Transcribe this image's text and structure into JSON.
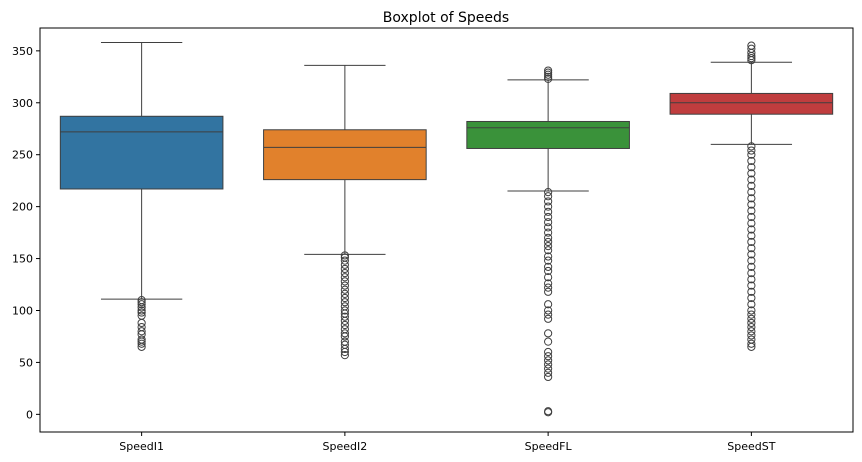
{
  "chart_data": {
    "type": "box",
    "title": "Boxplot of Speeds",
    "xlabel": "",
    "ylabel": "",
    "ylim": [
      -17,
      372
    ],
    "yticks": [
      0,
      50,
      100,
      150,
      200,
      250,
      300,
      350
    ],
    "categories": [
      "SpeedI1",
      "SpeedI2",
      "SpeedFL",
      "SpeedST"
    ],
    "series": [
      {
        "name": "SpeedI1",
        "color": "#3274a1",
        "whisker_low": 111,
        "q1": 217,
        "median": 272,
        "q3": 287,
        "whisker_high": 358,
        "outliers": [
          65,
          68,
          70,
          72,
          77,
          80,
          84,
          88,
          95,
          98,
          100,
          103,
          106,
          108,
          110
        ]
      },
      {
        "name": "SpeedI2",
        "color": "#e1812c",
        "whisker_low": 154,
        "q1": 226,
        "median": 257,
        "q3": 274,
        "whisker_high": 336,
        "outliers": [
          57,
          60,
          63,
          67,
          70,
          75,
          78,
          82,
          86,
          90,
          94,
          97,
          100,
          104,
          108,
          112,
          116,
          120,
          124,
          128,
          132,
          136,
          140,
          144,
          148,
          151,
          153
        ]
      },
      {
        "name": "SpeedFL",
        "color": "#3a923a",
        "whisker_low": 215,
        "q1": 256,
        "median": 276,
        "q3": 282,
        "whisker_high": 322,
        "outliers": [
          2,
          3,
          36,
          40,
          44,
          48,
          52,
          56,
          60,
          70,
          78,
          92,
          96,
          100,
          106,
          118,
          122,
          126,
          132,
          138,
          142,
          148,
          152,
          158,
          162,
          166,
          170,
          175,
          180,
          185,
          190,
          195,
          200,
          205,
          210,
          214,
          323,
          325,
          327,
          329,
          331
        ]
      },
      {
        "name": "SpeedST",
        "color": "#c03d3e",
        "whisker_low": 260,
        "q1": 289,
        "median": 300,
        "q3": 309,
        "whisker_high": 339,
        "outliers": [
          65,
          68,
          72,
          76,
          80,
          84,
          88,
          92,
          96,
          100,
          106,
          112,
          118,
          124,
          130,
          136,
          142,
          148,
          154,
          160,
          166,
          172,
          178,
          184,
          190,
          196,
          202,
          208,
          214,
          220,
          226,
          232,
          238,
          244,
          250,
          254,
          258,
          341,
          343,
          345,
          348,
          352,
          355
        ]
      }
    ]
  }
}
